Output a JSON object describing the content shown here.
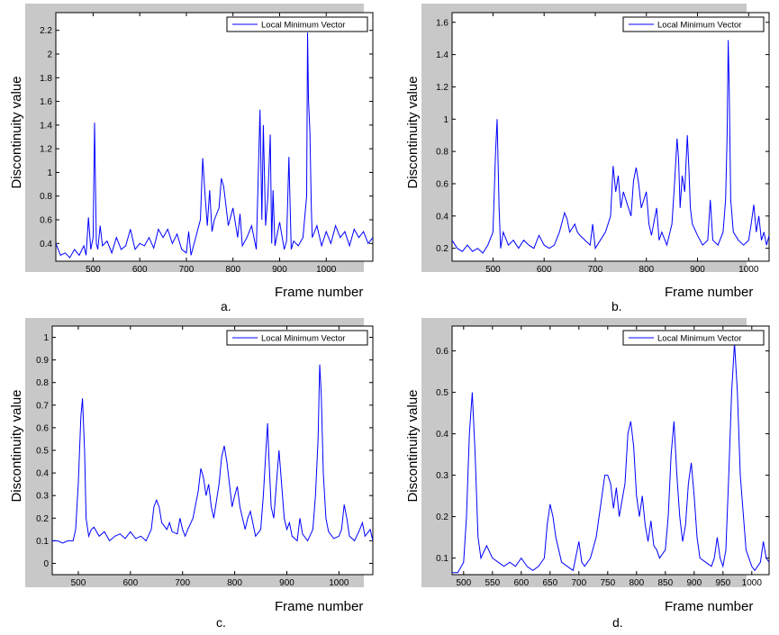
{
  "figure": {
    "panels": [
      {
        "caption": "a.",
        "ylabel": "Discontinuity value",
        "xlabel": "Frame number",
        "legend": "Local Minimum Vector"
      },
      {
        "caption": "b.",
        "ylabel": "Discontinuity value",
        "xlabel": "Frame number",
        "legend": "Local Minimum Vector"
      },
      {
        "caption": "c.",
        "ylabel": "Discontinuity value",
        "xlabel": "Frame number",
        "legend": "Local Minimum Vector"
      },
      {
        "caption": "d.",
        "ylabel": "Discontinuity value",
        "xlabel": "Frame number",
        "legend": "Local Minimum Vector"
      }
    ]
  },
  "chart_data": [
    {
      "type": "line",
      "title": "",
      "xlabel": "Frame number",
      "ylabel": "Discontinuity value",
      "xlim": [
        420,
        1100
      ],
      "ylim": [
        0.25,
        2.35
      ],
      "xticks": [
        500,
        600,
        700,
        800,
        900,
        1000
      ],
      "yticks": [
        0.4,
        0.6,
        0.8,
        1,
        1.2,
        1.4,
        1.6,
        1.8,
        2,
        2.2
      ],
      "legend_position": "top-right",
      "line_color": "#0000ff",
      "series": [
        {
          "name": "Local Minimum Vector",
          "x": [
            420,
            430,
            440,
            450,
            460,
            470,
            480,
            485,
            490,
            495,
            500,
            503,
            505,
            507,
            510,
            515,
            520,
            530,
            540,
            550,
            560,
            570,
            580,
            590,
            600,
            610,
            620,
            630,
            640,
            650,
            660,
            670,
            680,
            690,
            700,
            705,
            710,
            720,
            730,
            735,
            740,
            745,
            750,
            755,
            760,
            770,
            775,
            780,
            785,
            790,
            800,
            810,
            815,
            820,
            830,
            840,
            850,
            858,
            862,
            865,
            870,
            875,
            880,
            883,
            886,
            890,
            900,
            910,
            915,
            920,
            925,
            930,
            940,
            950,
            958,
            960,
            962,
            965,
            968,
            970,
            980,
            990,
            1000,
            1010,
            1020,
            1030,
            1040,
            1050,
            1060,
            1070,
            1080,
            1090,
            1100
          ],
          "y": [
            0.4,
            0.3,
            0.32,
            0.28,
            0.35,
            0.3,
            0.38,
            0.3,
            0.62,
            0.35,
            0.45,
            1.42,
            0.9,
            0.4,
            0.35,
            0.55,
            0.38,
            0.42,
            0.32,
            0.45,
            0.35,
            0.38,
            0.52,
            0.35,
            0.4,
            0.38,
            0.45,
            0.36,
            0.52,
            0.45,
            0.52,
            0.4,
            0.48,
            0.35,
            0.32,
            0.5,
            0.3,
            0.45,
            0.6,
            1.12,
            0.82,
            0.55,
            0.85,
            0.5,
            0.6,
            0.7,
            0.95,
            0.88,
            0.72,
            0.55,
            0.7,
            0.45,
            0.65,
            0.38,
            0.45,
            0.55,
            0.35,
            1.53,
            0.6,
            1.4,
            0.55,
            0.8,
            1.32,
            0.4,
            0.85,
            0.38,
            0.58,
            0.35,
            0.42,
            1.13,
            0.35,
            0.42,
            0.38,
            0.45,
            0.8,
            2.18,
            1.6,
            1.35,
            0.7,
            0.45,
            0.55,
            0.38,
            0.5,
            0.4,
            0.55,
            0.45,
            0.5,
            0.38,
            0.52,
            0.45,
            0.5,
            0.4,
            0.45
          ]
        }
      ]
    },
    {
      "type": "line",
      "title": "",
      "xlabel": "Frame number",
      "ylabel": "Discontinuity value",
      "xlim": [
        420,
        1040
      ],
      "ylim": [
        0.12,
        1.66
      ],
      "xticks": [
        500,
        600,
        700,
        800,
        900,
        1000
      ],
      "yticks": [
        0.2,
        0.4,
        0.6,
        0.8,
        1,
        1.2,
        1.4,
        1.6
      ],
      "legend_position": "top-right",
      "line_color": "#0000ff",
      "series": [
        {
          "name": "Local Minimum Vector",
          "x": [
            420,
            430,
            440,
            450,
            460,
            470,
            480,
            490,
            500,
            505,
            508,
            512,
            515,
            520,
            530,
            540,
            550,
            560,
            570,
            580,
            590,
            600,
            610,
            620,
            630,
            640,
            645,
            650,
            660,
            665,
            670,
            680,
            690,
            695,
            700,
            710,
            720,
            730,
            735,
            740,
            745,
            750,
            755,
            760,
            770,
            775,
            780,
            785,
            790,
            800,
            805,
            810,
            820,
            825,
            830,
            840,
            850,
            855,
            860,
            863,
            866,
            870,
            875,
            880,
            883,
            886,
            890,
            900,
            910,
            920,
            925,
            930,
            940,
            950,
            955,
            958,
            960,
            962,
            965,
            970,
            980,
            990,
            1000,
            1005,
            1010,
            1015,
            1020,
            1025,
            1030,
            1035,
            1040
          ],
          "y": [
            0.25,
            0.2,
            0.18,
            0.22,
            0.18,
            0.2,
            0.17,
            0.22,
            0.3,
            0.8,
            1.0,
            0.45,
            0.2,
            0.3,
            0.22,
            0.25,
            0.2,
            0.25,
            0.22,
            0.2,
            0.28,
            0.22,
            0.2,
            0.22,
            0.3,
            0.42,
            0.38,
            0.3,
            0.35,
            0.3,
            0.28,
            0.25,
            0.22,
            0.35,
            0.2,
            0.25,
            0.3,
            0.4,
            0.71,
            0.55,
            0.65,
            0.45,
            0.55,
            0.5,
            0.4,
            0.62,
            0.7,
            0.6,
            0.45,
            0.55,
            0.35,
            0.28,
            0.45,
            0.25,
            0.3,
            0.22,
            0.35,
            0.6,
            0.88,
            0.75,
            0.45,
            0.65,
            0.55,
            0.9,
            0.7,
            0.45,
            0.35,
            0.28,
            0.22,
            0.25,
            0.5,
            0.25,
            0.22,
            0.3,
            0.5,
            0.9,
            1.49,
            1.2,
            0.5,
            0.3,
            0.25,
            0.22,
            0.25,
            0.35,
            0.47,
            0.3,
            0.4,
            0.25,
            0.3,
            0.22,
            0.28
          ]
        }
      ]
    },
    {
      "type": "line",
      "title": "",
      "xlabel": "Frame number",
      "ylabel": "Discontinuity value",
      "xlim": [
        450,
        1065
      ],
      "ylim": [
        -0.05,
        1.05
      ],
      "xticks": [
        500,
        600,
        700,
        800,
        900,
        1000
      ],
      "yticks": [
        0,
        0.1,
        0.2,
        0.3,
        0.4,
        0.5,
        0.6,
        0.7,
        0.8,
        0.9,
        1
      ],
      "legend_position": "top-right",
      "line_color": "#0000ff",
      "series": [
        {
          "name": "Local Minimum Vector",
          "x": [
            450,
            460,
            470,
            480,
            490,
            495,
            500,
            505,
            508,
            512,
            515,
            520,
            525,
            530,
            540,
            550,
            560,
            570,
            580,
            590,
            600,
            610,
            620,
            630,
            640,
            645,
            650,
            655,
            660,
            670,
            675,
            680,
            690,
            695,
            700,
            705,
            710,
            720,
            730,
            735,
            740,
            745,
            750,
            755,
            760,
            770,
            775,
            780,
            785,
            790,
            795,
            800,
            805,
            810,
            815,
            820,
            825,
            830,
            840,
            850,
            855,
            860,
            863,
            866,
            870,
            875,
            880,
            885,
            890,
            895,
            900,
            905,
            910,
            920,
            925,
            930,
            940,
            950,
            955,
            960,
            963,
            966,
            970,
            975,
            980,
            990,
            1000,
            1005,
            1010,
            1015,
            1020,
            1030,
            1040,
            1045,
            1050,
            1060,
            1065
          ],
          "y": [
            0.1,
            0.1,
            0.09,
            0.1,
            0.1,
            0.15,
            0.35,
            0.65,
            0.73,
            0.5,
            0.2,
            0.12,
            0.15,
            0.16,
            0.12,
            0.14,
            0.1,
            0.12,
            0.13,
            0.11,
            0.14,
            0.11,
            0.12,
            0.1,
            0.15,
            0.25,
            0.28,
            0.25,
            0.18,
            0.15,
            0.18,
            0.14,
            0.13,
            0.2,
            0.15,
            0.12,
            0.15,
            0.2,
            0.32,
            0.42,
            0.38,
            0.3,
            0.35,
            0.25,
            0.2,
            0.35,
            0.47,
            0.52,
            0.45,
            0.35,
            0.25,
            0.3,
            0.34,
            0.25,
            0.2,
            0.15,
            0.2,
            0.23,
            0.12,
            0.15,
            0.3,
            0.5,
            0.62,
            0.45,
            0.25,
            0.2,
            0.35,
            0.5,
            0.35,
            0.2,
            0.15,
            0.18,
            0.12,
            0.1,
            0.2,
            0.13,
            0.1,
            0.15,
            0.3,
            0.55,
            0.88,
            0.75,
            0.4,
            0.2,
            0.14,
            0.11,
            0.12,
            0.15,
            0.26,
            0.2,
            0.12,
            0.1,
            0.15,
            0.18,
            0.12,
            0.15,
            0.1
          ]
        }
      ]
    },
    {
      "type": "line",
      "title": "",
      "xlabel": "Frame number",
      "ylabel": "Discontinuity value",
      "xlim": [
        480,
        1030
      ],
      "ylim": [
        0.06,
        0.66
      ],
      "xticks": [
        500,
        550,
        600,
        650,
        700,
        750,
        800,
        850,
        900,
        950,
        1000
      ],
      "yticks": [
        0.1,
        0.2,
        0.3,
        0.4,
        0.5,
        0.6
      ],
      "legend_position": "top-right",
      "line_color": "#0000ff",
      "series": [
        {
          "name": "Local Minimum Vector",
          "x": [
            480,
            490,
            500,
            505,
            510,
            515,
            520,
            525,
            530,
            540,
            550,
            560,
            570,
            580,
            590,
            600,
            610,
            620,
            630,
            640,
            645,
            650,
            655,
            660,
            670,
            680,
            690,
            700,
            705,
            710,
            720,
            730,
            740,
            745,
            750,
            755,
            760,
            765,
            770,
            780,
            785,
            790,
            795,
            800,
            805,
            810,
            815,
            820,
            825,
            830,
            835,
            840,
            850,
            855,
            860,
            865,
            870,
            875,
            880,
            885,
            890,
            895,
            900,
            905,
            910,
            920,
            930,
            935,
            940,
            945,
            950,
            955,
            960,
            965,
            970,
            975,
            980,
            990,
            1000,
            1005,
            1010,
            1015,
            1020,
            1025,
            1030
          ],
          "y": [
            0.065,
            0.065,
            0.09,
            0.2,
            0.4,
            0.5,
            0.35,
            0.15,
            0.1,
            0.13,
            0.1,
            0.09,
            0.08,
            0.09,
            0.08,
            0.1,
            0.08,
            0.07,
            0.08,
            0.1,
            0.18,
            0.23,
            0.2,
            0.15,
            0.09,
            0.08,
            0.07,
            0.14,
            0.09,
            0.08,
            0.1,
            0.15,
            0.25,
            0.3,
            0.3,
            0.28,
            0.22,
            0.27,
            0.2,
            0.28,
            0.4,
            0.43,
            0.37,
            0.25,
            0.2,
            0.25,
            0.18,
            0.14,
            0.19,
            0.13,
            0.12,
            0.1,
            0.12,
            0.2,
            0.35,
            0.43,
            0.3,
            0.2,
            0.14,
            0.18,
            0.28,
            0.33,
            0.25,
            0.15,
            0.1,
            0.09,
            0.08,
            0.1,
            0.15,
            0.1,
            0.08,
            0.12,
            0.3,
            0.5,
            0.62,
            0.5,
            0.3,
            0.12,
            0.08,
            0.07,
            0.08,
            0.09,
            0.14,
            0.1,
            0.09
          ]
        }
      ]
    }
  ]
}
